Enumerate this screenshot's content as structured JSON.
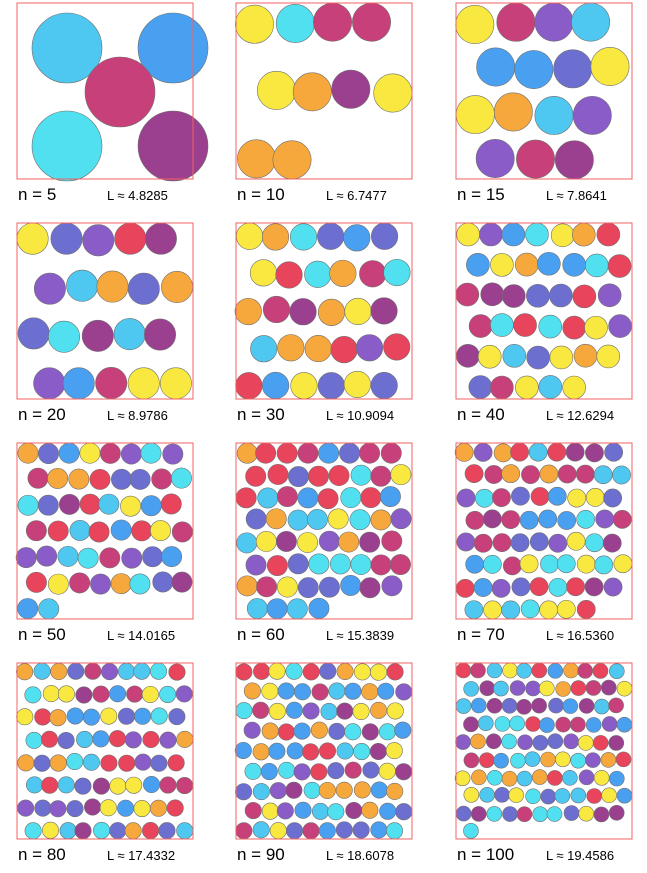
{
  "figure": {
    "panels": [
      {
        "n_label": "n = 5",
        "L_label": "L ≈ 4.8285",
        "n": 5
      },
      {
        "n_label": "n = 10",
        "L_label": "L ≈ 6.7477",
        "n": 10
      },
      {
        "n_label": "n = 15",
        "L_label": "L ≈ 7.8641",
        "n": 15
      },
      {
        "n_label": "n = 20",
        "L_label": "L ≈ 8.9786",
        "n": 20
      },
      {
        "n_label": "n = 30",
        "L_label": "L ≈ 10.9094",
        "n": 30
      },
      {
        "n_label": "n = 40",
        "L_label": "L ≈ 12.6294",
        "n": 40
      },
      {
        "n_label": "n = 50",
        "L_label": "L ≈ 14.0165",
        "n": 50
      },
      {
        "n_label": "n = 60",
        "L_label": "L ≈ 15.3839",
        "n": 60
      },
      {
        "n_label": "n = 70",
        "L_label": "L ≈ 16.5360",
        "n": 70
      },
      {
        "n_label": "n = 80",
        "L_label": "L ≈ 17.4332",
        "n": 80
      },
      {
        "n_label": "n = 90",
        "L_label": "L ≈ 18.6078",
        "n": 90
      },
      {
        "n_label": "n = 100",
        "L_label": "L ≈ 19.4586",
        "n": 100
      }
    ],
    "palette": [
      "#9b3f8f",
      "#6d6fd0",
      "#4ec8f0",
      "#f8e840",
      "#f6a83c",
      "#e8445c",
      "#4aa0f0",
      "#50e0f0",
      "#8a5cc8",
      "#c8407a"
    ],
    "border_color": "#f26060"
  }
}
